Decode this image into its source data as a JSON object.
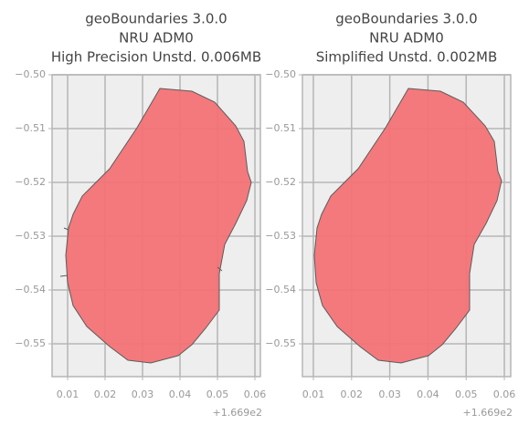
{
  "chart_data": [
    {
      "type": "map",
      "title": [
        "geoBoundaries 3.0.0",
        "NRU ADM0",
        "High Precision Unstd. 0.006MB"
      ],
      "xlim": [
        0.00585,
        0.06146
      ],
      "ylim": [
        -0.5561,
        -0.5
      ],
      "xticks": [
        0.01,
        0.02,
        0.03,
        0.04,
        0.05,
        0.06
      ],
      "yticks": [
        {
          "value": -0.5,
          "label": "−0.50"
        },
        {
          "value": -0.51,
          "label": "−0.51"
        },
        {
          "value": -0.52,
          "label": "−0.52"
        },
        {
          "value": -0.53,
          "label": "−0.53"
        },
        {
          "value": -0.54,
          "label": "−0.54"
        },
        {
          "value": -0.55,
          "label": "−0.55"
        }
      ],
      "x_offset_label": "+1.669e2",
      "grid": true,
      "color": "#f47376"
    },
    {
      "type": "map",
      "title": [
        "geoBoundaries 3.0.0",
        "NRU ADM0",
        "Simplified Unstd. 0.002MB"
      ],
      "xlim": [
        0.00713,
        0.06167
      ],
      "ylim": [
        -0.5561,
        -0.5
      ],
      "xticks": [
        0.01,
        0.02,
        0.03,
        0.04,
        0.05,
        0.06
      ],
      "yticks": [
        {
          "value": -0.5,
          "label": "−0.50"
        },
        {
          "value": -0.51,
          "label": "−0.51"
        },
        {
          "value": -0.52,
          "label": "−0.52"
        },
        {
          "value": -0.53,
          "label": "−0.53"
        },
        {
          "value": -0.54,
          "label": "−0.54"
        },
        {
          "value": -0.55,
          "label": "−0.55"
        }
      ],
      "x_offset_label": "+1.669e2",
      "grid": true,
      "color": "#f47376"
    }
  ]
}
